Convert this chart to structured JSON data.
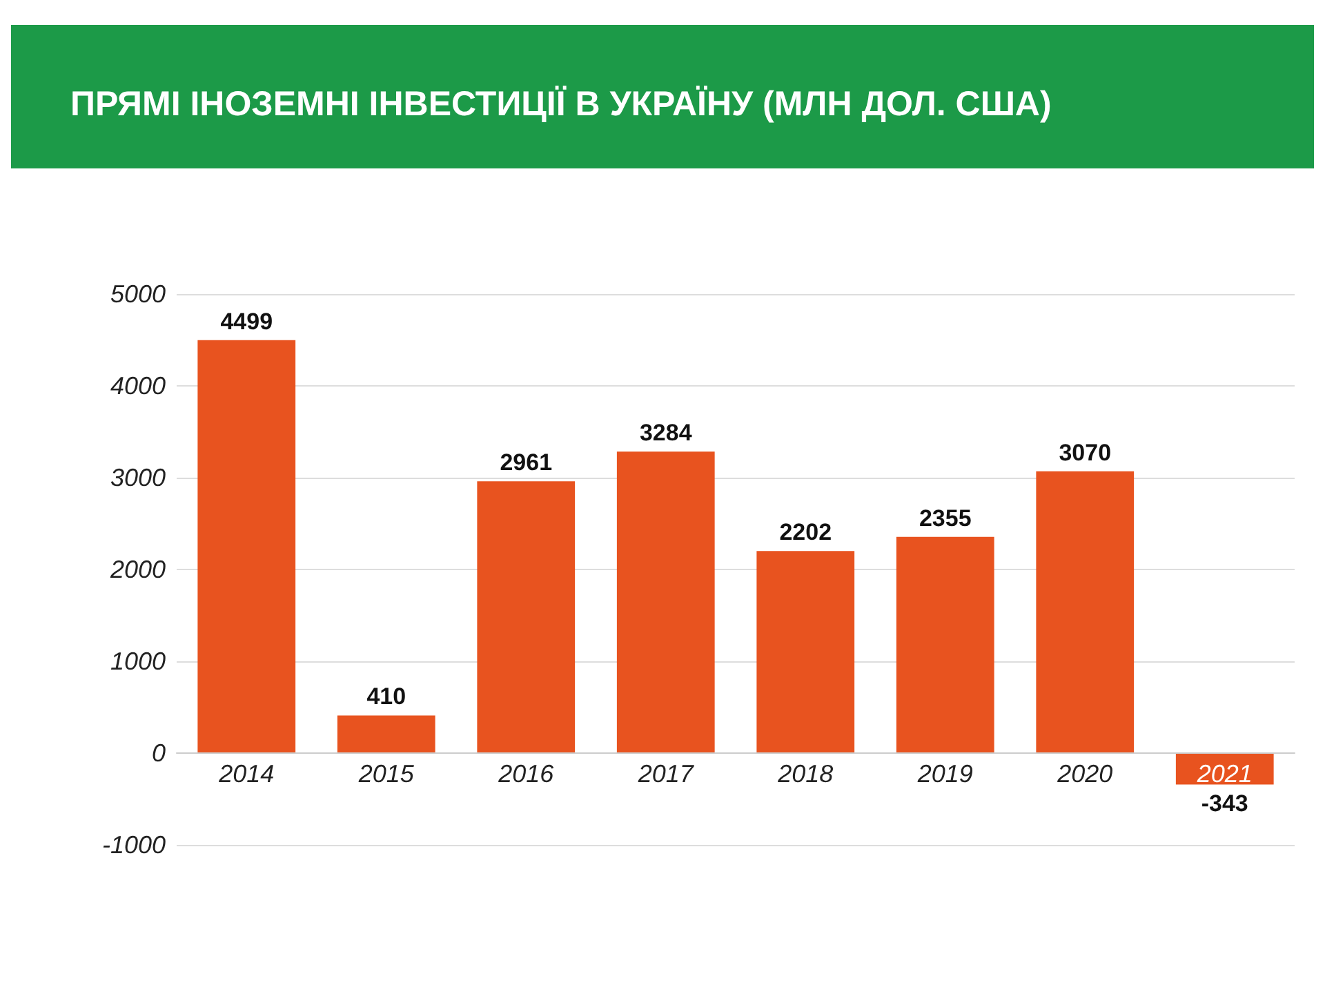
{
  "chart_data": {
    "type": "bar",
    "title": "ПРЯМІ ІНОЗЕМНІ ІНВЕСТИЦІЇ В УКРАЇНУ (МЛН ДОЛ. США)",
    "categories": [
      "2014",
      "2015",
      "2016",
      "2017",
      "2018",
      "2019",
      "2020",
      "2021"
    ],
    "values": [
      4499,
      410,
      2961,
      3284,
      2202,
      2355,
      3070,
      -343
    ],
    "color": "#e8531f",
    "ylim": [
      -1000,
      5000
    ],
    "yticks": [
      -1000,
      0,
      1000,
      2000,
      3000,
      4000,
      5000
    ],
    "grid": "y",
    "data_labels": true
  }
}
